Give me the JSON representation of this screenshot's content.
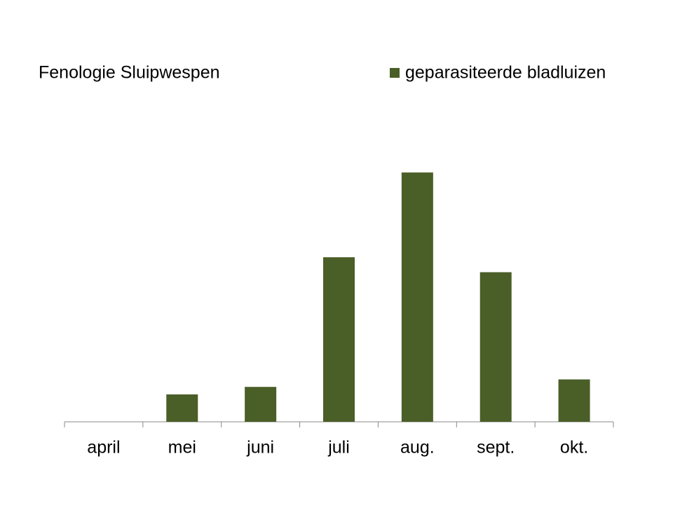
{
  "chart_data": {
    "type": "bar",
    "title": "Fenologie Sluipwespen",
    "categories": [
      "april",
      "mei",
      "juni",
      "juli",
      "aug.",
      "sept.",
      "okt."
    ],
    "series": [
      {
        "name": "geparasiteerde bladluizen",
        "color": "#4a5e27",
        "values": [
          0,
          11,
          14,
          66,
          100,
          60,
          17
        ]
      }
    ],
    "ylim": [
      0,
      120
    ],
    "legend": "top-right"
  }
}
